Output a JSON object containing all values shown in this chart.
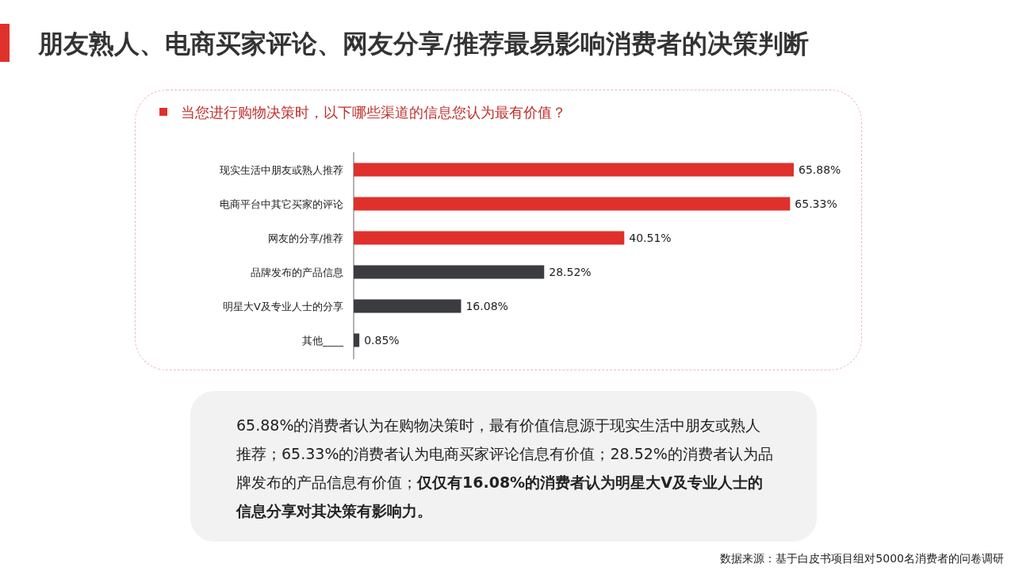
{
  "chart_data": {
    "type": "bar",
    "orientation": "horizontal",
    "title": "朋友熟人、电商买家评论、网友分享/推荐最易影响消费者的决策判断",
    "subtitle": "当您进行购物决策时，以下哪些渠道的信息您认为最有价值？",
    "categories": [
      "现实生活中朋友或熟人推荐",
      "电商平台中其它买家的评论",
      "网友的分享/推荐",
      "品牌发布的产品信息",
      "明星大V及专业人士的分享",
      "其他____"
    ],
    "values": [
      65.88,
      65.33,
      40.51,
      28.52,
      16.08,
      0.85
    ],
    "value_labels": [
      "65.88%",
      "65.33%",
      "40.51%",
      "28.52%",
      "16.08%",
      "0.85%"
    ],
    "colors": [
      "#e0302b",
      "#e0302b",
      "#e0302b",
      "#3a3c40",
      "#3a3c40",
      "#3a3c40"
    ],
    "annotations": [
      "65.88%的消费者认为在购物决策时，最有价值信息源于现实生活中朋友或熟人推荐；65.33%的消费者认为电商买家评论信息有价值；28.52%的消费者认为品牌发布的产品信息有价值；**仅仅有16.08%的消费者认为明星大V及专业人士的信息分享对其决策有影响力。**",
      "数据来源：基于白皮书项目组对5000名消费者的问卷调研"
    ]
  }
}
